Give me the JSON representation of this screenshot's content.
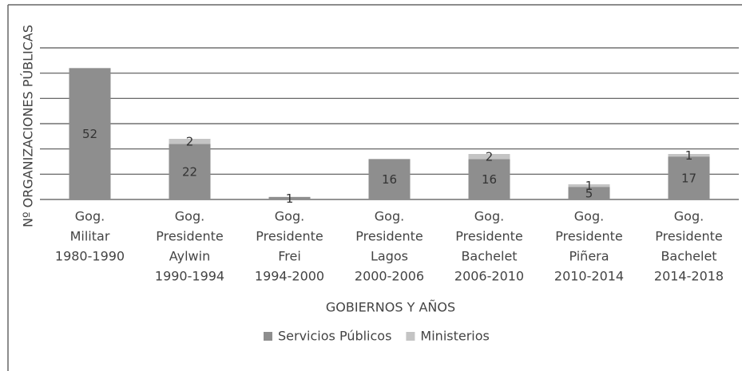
{
  "chart_data": {
    "type": "bar",
    "stacked": true,
    "y_label": "Nº ORGANIZACIONES PÚBLICAS",
    "x_label": "GOBIERNOS Y AÑOS",
    "categories": [
      [
        "Gog.",
        "Militar",
        "1980-1990"
      ],
      [
        "Gog.",
        "Presidente",
        "Aylwin",
        "1990-1994"
      ],
      [
        "Gog.",
        "Presidente",
        "Frei",
        "1994-2000"
      ],
      [
        "Gog.",
        "Presidente",
        "Lagos",
        "2000-2006"
      ],
      [
        "Gog.",
        "Presidente",
        "Bachelet",
        "2006-2010"
      ],
      [
        "Gog.",
        "Presidente",
        "Piñera",
        "2010-2014"
      ],
      [
        "Gog.",
        "Presidente",
        "Bachelet",
        "2014-2018"
      ]
    ],
    "series": [
      {
        "name": "Servicios Públicos",
        "color": "#8e8e8e",
        "values": [
          52,
          22,
          1,
          16,
          16,
          5,
          17
        ]
      },
      {
        "name": "Ministerios",
        "color": "#c4c4c4",
        "values": [
          null,
          2,
          null,
          null,
          2,
          1,
          1
        ]
      }
    ],
    "ylim": [
      0,
      60
    ],
    "yticks": [
      0,
      10,
      20,
      30,
      40,
      50,
      60
    ],
    "grid": true,
    "legend": "bottom"
  }
}
